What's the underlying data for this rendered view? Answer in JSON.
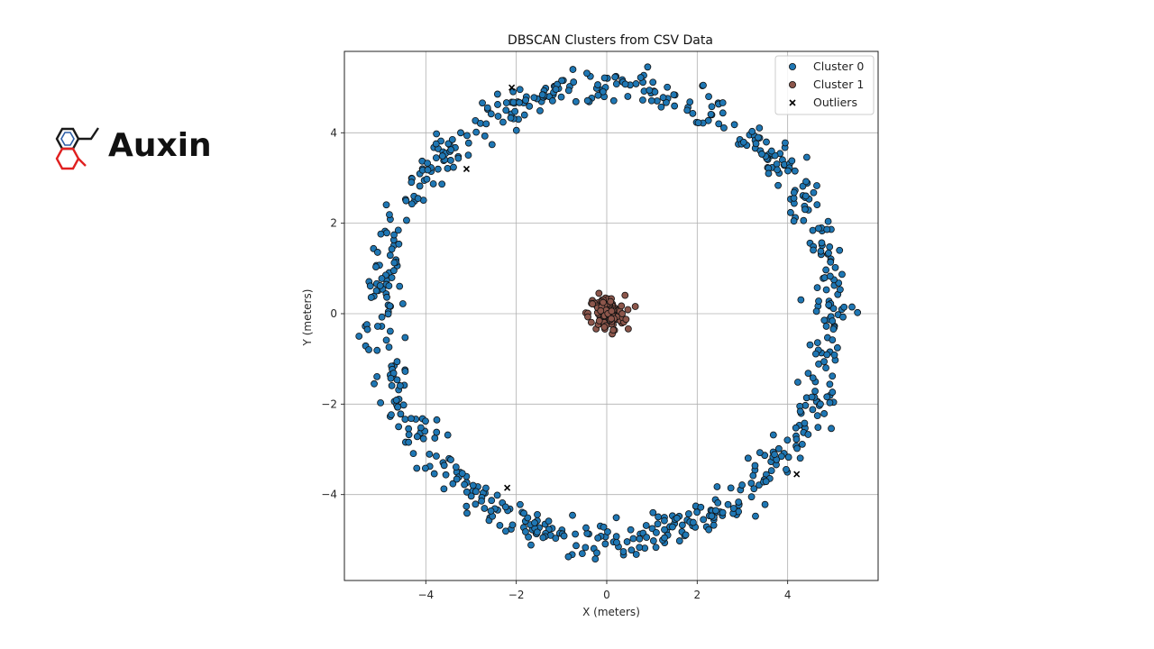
{
  "brand": {
    "name": "Auxin",
    "logo_icon": "molecule-hexagon-icon",
    "logo_colors": {
      "upper_ring": "#1a1a1a",
      "lower_ring": "#e02020"
    }
  },
  "chart_data": {
    "type": "scatter",
    "title": "DBSCAN Clusters from CSV Data",
    "xlabel": "X (meters)",
    "ylabel": "Y (meters)",
    "xlim": [
      -5.8,
      6.0
    ],
    "ylim": [
      -5.9,
      5.8
    ],
    "xticks": [
      -4,
      -2,
      0,
      2,
      4
    ],
    "yticks": [
      -4,
      -2,
      0,
      2,
      4
    ],
    "grid": true,
    "legend_position": "top-right",
    "series": [
      {
        "name": "Cluster 0",
        "marker": "circle",
        "color": "#1f77b4",
        "edgecolor": "#111111",
        "shape": "ring",
        "center": [
          0,
          0
        ],
        "radius": 5.0,
        "radial_spread": 0.2,
        "approx_count": 700
      },
      {
        "name": "Cluster 1",
        "marker": "circle",
        "color": "#8c564b",
        "edgecolor": "#111111",
        "shape": "blob",
        "center": [
          0,
          0
        ],
        "spread": 0.2,
        "approx_count": 120
      },
      {
        "name": "Outliers",
        "marker": "x",
        "color": "#000000",
        "points": [
          {
            "x": -2.1,
            "y": 5.0
          },
          {
            "x": -3.1,
            "y": 3.2
          },
          {
            "x": -2.2,
            "y": -3.85
          },
          {
            "x": 4.2,
            "y": -3.55
          }
        ]
      }
    ]
  }
}
